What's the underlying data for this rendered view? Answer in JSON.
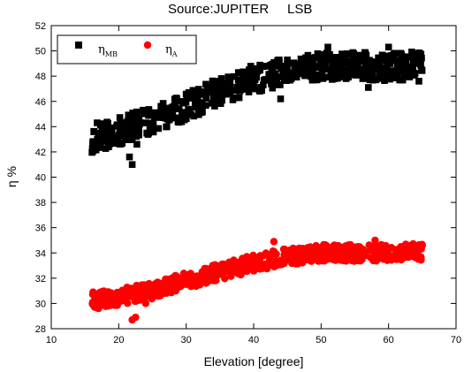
{
  "chart_data": {
    "type": "scatter",
    "title": "Source:JUPITER     LSB",
    "xlabel": "Elevation [degree]",
    "ylabel": "η %",
    "xlim": [
      10,
      70
    ],
    "ylim": [
      28,
      52
    ],
    "x_ticks": [
      "10",
      "20",
      "30",
      "40",
      "50",
      "60",
      "70"
    ],
    "y_ticks": [
      "28",
      "30",
      "32",
      "34",
      "36",
      "38",
      "40",
      "42",
      "44",
      "46",
      "48",
      "50",
      "52"
    ],
    "legend": {
      "position": "top-left"
    },
    "series": [
      {
        "name": "η",
        "subscript": "MB",
        "marker": "square",
        "color": "#000000",
        "trend": [
          [
            16,
            43.0
          ],
          [
            20,
            43.6
          ],
          [
            25,
            44.6
          ],
          [
            30,
            45.6
          ],
          [
            35,
            46.8
          ],
          [
            40,
            47.8
          ],
          [
            45,
            48.4
          ],
          [
            50,
            48.8
          ],
          [
            55,
            48.8
          ],
          [
            60,
            48.7
          ],
          [
            65,
            48.9
          ]
        ],
        "spread": 1.0,
        "count": 700,
        "extra_points": [
          [
            16.8,
            44.3
          ],
          [
            22,
            41.0
          ],
          [
            21.6,
            41.6
          ],
          [
            17,
            42.7
          ],
          [
            22.7,
            42.6
          ],
          [
            18.5,
            42.4
          ],
          [
            51,
            50.3
          ],
          [
            60,
            50.3
          ],
          [
            44,
            46.2
          ],
          [
            57,
            47.1
          ],
          [
            64.5,
            47.6
          ]
        ]
      },
      {
        "name": "η",
        "subscript": "A",
        "marker": "circle",
        "color": "#ff0000",
        "trend": [
          [
            16,
            30.2
          ],
          [
            20,
            30.5
          ],
          [
            25,
            31.0
          ],
          [
            30,
            31.8
          ],
          [
            35,
            32.5
          ],
          [
            40,
            33.2
          ],
          [
            45,
            33.7
          ],
          [
            50,
            34.0
          ],
          [
            55,
            34.0
          ],
          [
            60,
            34.0
          ],
          [
            65,
            34.1
          ]
        ],
        "spread": 0.6,
        "count": 700,
        "extra_points": [
          [
            22,
            28.7
          ],
          [
            22.5,
            28.9
          ],
          [
            16.2,
            30.9
          ],
          [
            17,
            29.6
          ],
          [
            43,
            34.9
          ],
          [
            58,
            35.0
          ],
          [
            65,
            34.6
          ],
          [
            24,
            30.0
          ]
        ]
      }
    ]
  }
}
